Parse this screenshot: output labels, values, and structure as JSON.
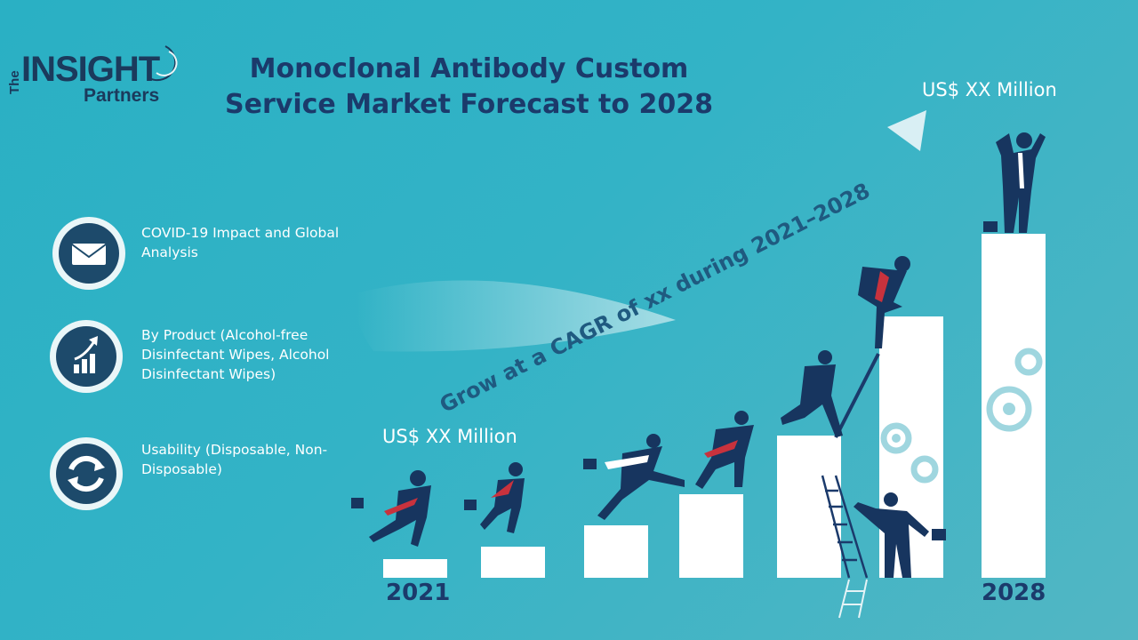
{
  "logo": {
    "the": "The",
    "insight": "INSIGHT",
    "partners": "Partners"
  },
  "title": "Monoclonal Antibody Custom Service Market Forecast to 2028",
  "features": [
    {
      "icon": "envelope-icon",
      "text": "COVID-19 Impact and Global Analysis"
    },
    {
      "icon": "growth-chart-icon",
      "text": "By Product (Alcohol-free Disinfectant Wipes, Alcohol Disinfectant Wipes)"
    },
    {
      "icon": "recycle-arrows-icon",
      "text": "Usability (Disposable, Non-Disposable)"
    }
  ],
  "chart": {
    "start_label": "US$ XX Million",
    "end_label": "US$ XX Million",
    "start_year": "2021",
    "end_year": "2028",
    "cagr_text": "Grow at a CAGR of xx during 2021–2028"
  },
  "colors": {
    "background": "#2ab0c4",
    "navy": "#1b3a6b",
    "white": "#ffffff"
  }
}
